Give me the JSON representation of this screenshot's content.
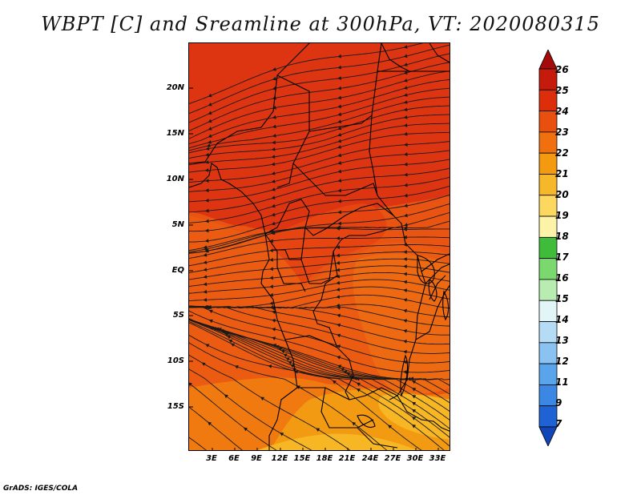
{
  "title": "WBPT [C] and Sreamline at 300hPa, VT: 2020080315",
  "footer": "GrADS: IGES/COLA",
  "lat_labels": [
    "20N",
    "15N",
    "10N",
    "5N",
    "EQ",
    "5S",
    "10S",
    "15S"
  ],
  "lon_labels": [
    "3E",
    "6E",
    "9E",
    "12E",
    "15E",
    "18E",
    "21E",
    "24E",
    "27E",
    "30E",
    "33E"
  ],
  "colorbar": {
    "labels": [
      "26",
      "25",
      "24",
      "23",
      "22",
      "21",
      "20",
      "19",
      "18",
      "17",
      "16",
      "15",
      "14",
      "13",
      "12",
      "11",
      "9",
      "7"
    ],
    "colors": [
      "#a50a0a",
      "#c41b0c",
      "#dd2e0c",
      "#e9500f",
      "#f07010",
      "#f49a10",
      "#f6b82a",
      "#fcd860",
      "#fdf3a8",
      "#3fbd3a",
      "#7bd86f",
      "#b8ecb0",
      "#e2f6f8",
      "#b5dcf5",
      "#8ac2f2",
      "#5aa4ec",
      "#3a88e3",
      "#1e62d4",
      "#1245b8"
    ]
  },
  "map_colors": {
    "c24": "#dd3512",
    "c23": "#e95412",
    "c22": "#f07a10",
    "c21": "#f29a12",
    "c20": "#f7b623"
  }
}
